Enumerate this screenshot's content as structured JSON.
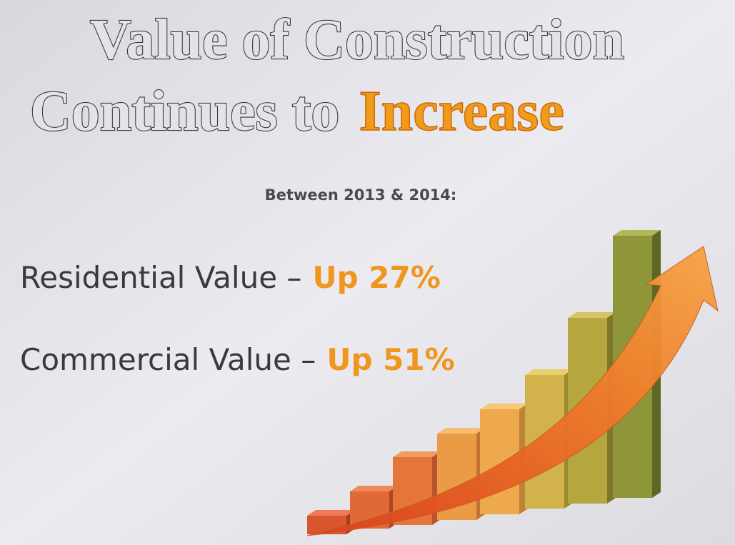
{
  "title": {
    "line1": "Value of Construction",
    "line2": "Continues to",
    "highlight": "Increase"
  },
  "subtitle": "Between 2013 & 2014:",
  "items": [
    {
      "label": "Residential Value –",
      "value": "Up 27%"
    },
    {
      "label": "Commercial Value –",
      "value": "Up 51%"
    }
  ]
}
